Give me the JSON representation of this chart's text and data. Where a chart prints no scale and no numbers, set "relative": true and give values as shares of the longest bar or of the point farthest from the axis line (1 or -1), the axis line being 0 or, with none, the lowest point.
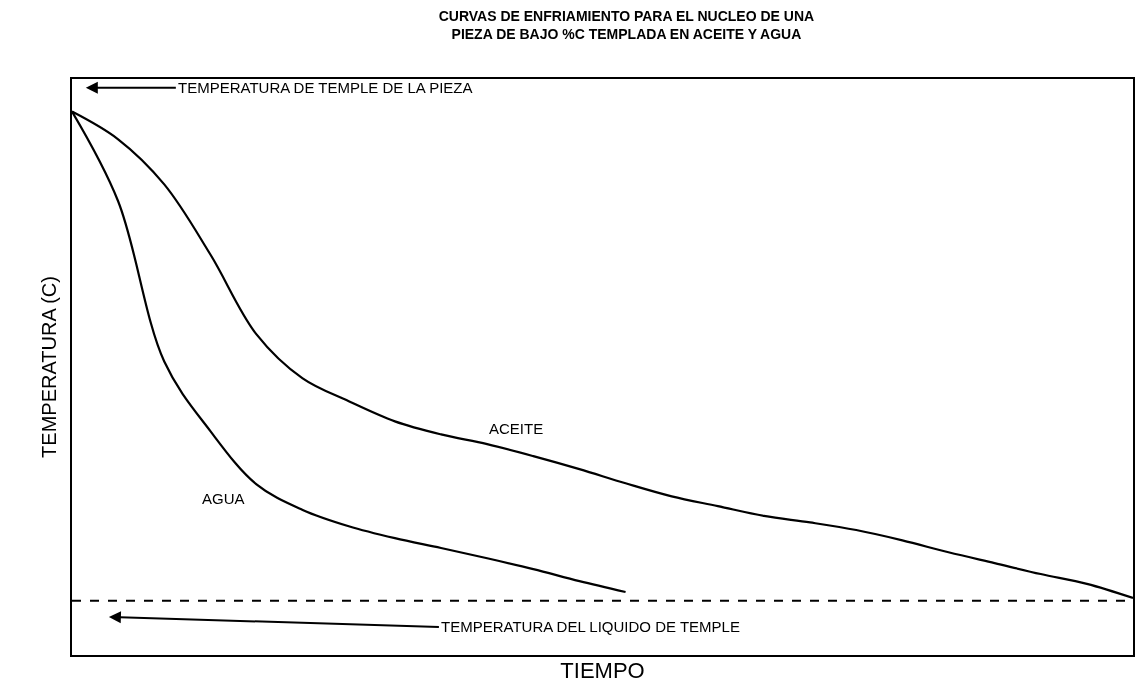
{
  "chart_data": {
    "type": "line",
    "title": "CURVAS DE ENFRIAMIENTO PARA EL NUCLEO DE UNA\nPIEZA DE BAJO %C TEMPLADA EN ACEITE Y AGUA",
    "xlabel": "TIEMPO",
    "ylabel": "TEMPERATURA (C)",
    "relative": true,
    "categories": [
      null,
      null,
      null,
      null,
      null,
      null,
      null,
      null,
      null,
      null,
      null,
      null,
      null,
      null,
      null,
      null,
      null,
      null,
      null,
      null,
      null,
      null,
      null,
      null
    ],
    "series": [
      {
        "name": "ACEITE",
        "color": "#000000",
        "values": [
          1.0,
          0.949,
          0.866,
          0.737,
          0.59,
          0.509,
          0.467,
          0.43,
          0.406,
          0.388,
          0.366,
          0.342,
          0.316,
          0.292,
          0.274,
          0.256,
          0.244,
          0.23,
          0.211,
          0.189,
          0.169,
          0.149,
          0.131,
          0.105
        ]
      },
      {
        "name": "AGUA",
        "color": "#000000",
        "values": [
          1.0,
          0.835,
          0.54,
          0.412,
          0.314,
          0.267,
          0.237,
          0.215,
          0.197,
          0.178,
          0.158,
          0.136,
          0.116,
          null,
          null,
          null,
          null,
          null,
          null,
          null,
          null,
          null,
          null,
          null
        ]
      }
    ],
    "ref_lines": [
      {
        "axis": "y",
        "value": 0.1,
        "label": "TEMPERATURA DEL LIQUIDO DE TEMPLE",
        "color": "#000000",
        "line_style": "dashed"
      }
    ],
    "annotations": [
      "TEMPERATURA DE TEMPLE DE LA PIEZA"
    ],
    "legend": false,
    "marker": "none",
    "line_style": "solid"
  }
}
